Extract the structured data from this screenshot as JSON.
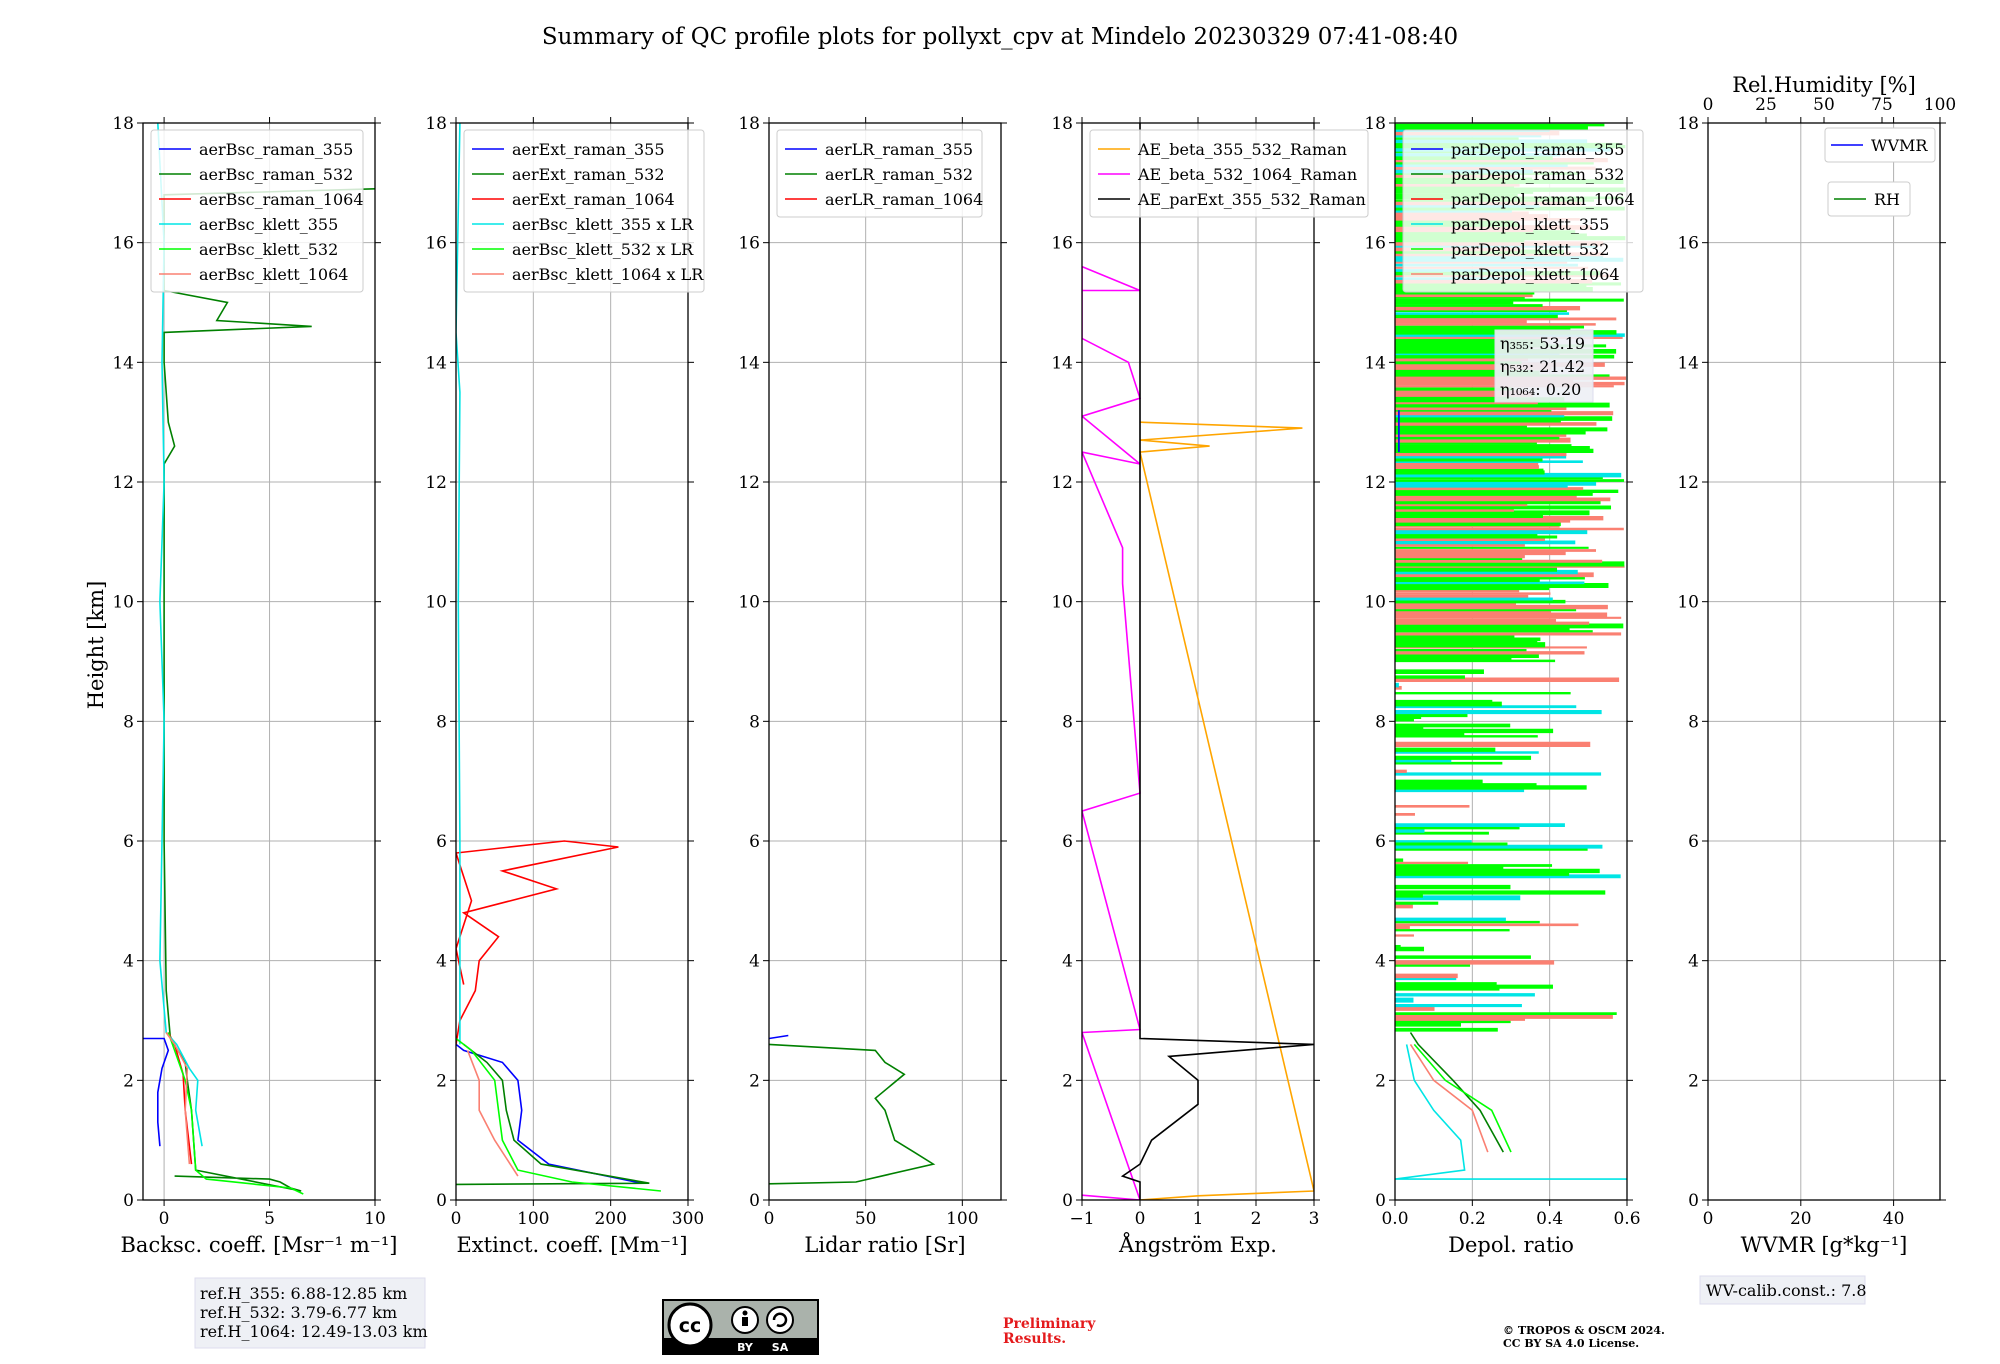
{
  "title": "Summary of QC profile plots for pollyxt_cpv at Mindelo 20230329 07:41-08:40",
  "y_axis": {
    "label": "Height [km]",
    "ticks": [
      0,
      2,
      4,
      6,
      8,
      10,
      12,
      14,
      16,
      18
    ],
    "ylim": [
      0,
      18
    ]
  },
  "colors": {
    "blue": "#0000ff",
    "green": "#008000",
    "red": "#ff0000",
    "cyan": "#00e5e5",
    "lime": "#00ff00",
    "salmon": "#fa8072",
    "orange": "#ffa500",
    "magenta": "#ff00ff",
    "black": "#000000"
  },
  "chart_data": [
    {
      "type": "line",
      "id": "backscatter",
      "xlabel": "Backsc. coeff. [Msr⁻¹ m⁻¹]",
      "xlim": [
        -1,
        10
      ],
      "xticks": [
        0,
        5,
        10
      ],
      "legend": [
        "aerBsc_raman_355",
        "aerBsc_raman_532",
        "aerBsc_raman_1064",
        "aerBsc_klett_355",
        "aerBsc_klett_532",
        "aerBsc_klett_1064"
      ],
      "series": [
        {
          "name": "aerBsc_raman_355",
          "color": "blue",
          "points": [
            [
              -0.2,
              0.9
            ],
            [
              -0.3,
              1.3
            ],
            [
              -0.3,
              1.8
            ],
            [
              -0.1,
              2.2
            ],
            [
              0.2,
              2.5
            ],
            [
              0,
              2.7
            ],
            [
              -1,
              2.7
            ]
          ]
        },
        {
          "name": "aerBsc_raman_532",
          "color": "green",
          "points": [
            [
              0.5,
              0.4
            ],
            [
              5,
              0.35
            ],
            [
              5.5,
              0.3
            ],
            [
              6,
              0.2
            ],
            [
              6.5,
              0.15
            ],
            [
              1.5,
              0.5
            ],
            [
              1.3,
              1.5
            ],
            [
              1.1,
              2.0
            ],
            [
              1.0,
              2.3
            ],
            [
              0.3,
              2.7
            ],
            [
              0.1,
              3.5
            ],
            [
              0,
              6
            ],
            [
              0,
              12.3
            ],
            [
              0.5,
              12.6
            ],
            [
              0.2,
              13.0
            ],
            [
              0,
              14
            ],
            [
              0,
              14.5
            ],
            [
              7,
              14.6
            ],
            [
              2.5,
              14.7
            ],
            [
              3,
              15.0
            ],
            [
              0,
              15.2
            ],
            [
              0,
              16.8
            ],
            [
              10,
              16.9
            ]
          ]
        },
        {
          "name": "aerBsc_raman_1064",
          "color": "red",
          "points": [
            [
              1.3,
              0.6
            ],
            [
              1.0,
              1.5
            ],
            [
              0.9,
              2.1
            ],
            [
              0.5,
              2.6
            ],
            [
              0.2,
              2.8
            ]
          ]
        },
        {
          "name": "aerBsc_klett_355",
          "color": "cyan",
          "points": [
            [
              1.8,
              0.9
            ],
            [
              1.5,
              1.5
            ],
            [
              1.6,
              2.0
            ],
            [
              1.2,
              2.2
            ],
            [
              0.6,
              2.6
            ],
            [
              0.1,
              2.8
            ],
            [
              -0.2,
              4
            ],
            [
              0,
              8
            ],
            [
              -0.2,
              10
            ],
            [
              0,
              12
            ],
            [
              -0.1,
              14
            ],
            [
              0,
              16
            ],
            [
              -0.3,
              18
            ]
          ]
        },
        {
          "name": "aerBsc_klett_532",
          "color": "lime",
          "points": [
            [
              6.6,
              0.1
            ],
            [
              6,
              0.2
            ],
            [
              2,
              0.35
            ],
            [
              1.5,
              0.5
            ],
            [
              1.3,
              1.5
            ],
            [
              1.0,
              2.0
            ],
            [
              0.5,
              2.5
            ],
            [
              0.2,
              2.8
            ]
          ]
        },
        {
          "name": "aerBsc_klett_1064",
          "color": "salmon",
          "points": [
            [
              1.2,
              0.6
            ],
            [
              1.0,
              1.5
            ],
            [
              1.1,
              2.2
            ],
            [
              0.5,
              2.6
            ],
            [
              0.1,
              2.8
            ]
          ]
        }
      ]
    },
    {
      "type": "line",
      "id": "extinction",
      "xlabel": "Extinct. coeff. [Mm⁻¹]",
      "xlim": [
        0,
        300
      ],
      "xticks": [
        0,
        100,
        200,
        300
      ],
      "legend": [
        "aerExt_raman_355",
        "aerExt_raman_532",
        "aerExt_raman_1064",
        "aerBsc_klett_355 x LR",
        "aerBsc_klett_532 x LR",
        "aerBsc_klett_1064 x LR"
      ],
      "series": [
        {
          "name": "aerExt_raman_355",
          "color": "blue",
          "points": [
            [
              240,
              0.28
            ],
            [
              120,
              0.6
            ],
            [
              80,
              1.0
            ],
            [
              85,
              1.5
            ],
            [
              80,
              2.0
            ],
            [
              60,
              2.3
            ],
            [
              10,
              2.5
            ],
            [
              0,
              2.6
            ]
          ]
        },
        {
          "name": "aerExt_raman_532",
          "color": "green",
          "points": [
            [
              0,
              0.26
            ],
            [
              250,
              0.28
            ],
            [
              110,
              0.6
            ],
            [
              75,
              1.0
            ],
            [
              65,
              1.5
            ],
            [
              60,
              2.0
            ],
            [
              40,
              2.3
            ],
            [
              10,
              2.6
            ]
          ]
        },
        {
          "name": "aerExt_raman_1064",
          "color": "red",
          "points": [
            [
              0,
              2.6
            ],
            [
              5,
              3.0
            ],
            [
              25,
              3.5
            ],
            [
              30,
              4.0
            ],
            [
              55,
              4.4
            ],
            [
              10,
              4.8
            ],
            [
              130,
              5.2
            ],
            [
              60,
              5.5
            ],
            [
              210,
              5.9
            ],
            [
              140,
              6.0
            ],
            [
              0,
              5.8
            ],
            [
              20,
              5.0
            ],
            [
              0,
              4.2
            ],
            [
              10,
              3.6
            ]
          ]
        },
        {
          "name": "aerBsc_klett_355 x LR",
          "color": "cyan",
          "points": [
            [
              5,
              2.6
            ],
            [
              5,
              6
            ],
            [
              3,
              10
            ],
            [
              5,
              13.5
            ],
            [
              0,
              14.5
            ],
            [
              5,
              18
            ]
          ]
        },
        {
          "name": "aerBsc_klett_532 x LR",
          "color": "lime",
          "points": [
            [
              265,
              0.15
            ],
            [
              150,
              0.3
            ],
            [
              80,
              0.5
            ],
            [
              60,
              1.0
            ],
            [
              55,
              1.5
            ],
            [
              50,
              2.0
            ],
            [
              20,
              2.5
            ],
            [
              0,
              2.7
            ]
          ]
        },
        {
          "name": "aerBsc_klett_1064 x LR",
          "color": "salmon",
          "points": [
            [
              80,
              0.4
            ],
            [
              50,
              1.0
            ],
            [
              30,
              1.5
            ],
            [
              30,
              2.0
            ],
            [
              15,
              2.5
            ]
          ]
        }
      ]
    },
    {
      "type": "line",
      "id": "lidar_ratio",
      "xlabel": "Lidar ratio [Sr]",
      "xlim": [
        0,
        120
      ],
      "xticks": [
        0,
        50,
        100
      ],
      "legend": [
        "aerLR_raman_355",
        "aerLR_raman_532",
        "aerLR_raman_1064"
      ],
      "series": [
        {
          "name": "aerLR_raman_355",
          "color": "blue",
          "points": [
            [
              0,
              2.7
            ],
            [
              10,
              2.75
            ]
          ]
        },
        {
          "name": "aerLR_raman_532",
          "color": "green",
          "points": [
            [
              0,
              0.27
            ],
            [
              45,
              0.3
            ],
            [
              85,
              0.6
            ],
            [
              75,
              0.8
            ],
            [
              65,
              1.0
            ],
            [
              60,
              1.5
            ],
            [
              55,
              1.7
            ],
            [
              70,
              2.1
            ],
            [
              60,
              2.3
            ],
            [
              55,
              2.5
            ],
            [
              0,
              2.6
            ]
          ]
        },
        {
          "name": "aerLR_raman_1064",
          "color": "red",
          "points": []
        }
      ]
    },
    {
      "type": "line",
      "id": "angstrom",
      "xlabel": "Ångström Exp.",
      "xlim": [
        -1,
        3
      ],
      "xticks": [
        -1,
        0,
        1,
        2,
        3
      ],
      "legend": [
        "AE_beta_355_532_Raman",
        "AE_beta_532_1064_Raman",
        "AE_parExt_355_532_Raman"
      ],
      "series": [
        {
          "name": "AE_beta_355_532_Raman",
          "color": "orange",
          "points": [
            [
              0,
              0
            ],
            [
              1,
              0.07
            ],
            [
              3,
              0.15
            ],
            [
              0,
              12.5
            ],
            [
              1.2,
              12.6
            ],
            [
              0,
              12.7
            ],
            [
              2.8,
              12.9
            ],
            [
              0,
              13.0
            ]
          ]
        },
        {
          "name": "AE_beta_532_1064_Raman",
          "color": "magenta",
          "points": [
            [
              -1,
              0.08
            ],
            [
              0,
              0
            ],
            [
              -1,
              2.8
            ],
            [
              0,
              2.85
            ],
            [
              -1,
              6.5
            ],
            [
              0,
              6.8
            ],
            [
              -0.3,
              10.3
            ],
            [
              -0.3,
              10.9
            ],
            [
              -1,
              12.5
            ],
            [
              0,
              12.3
            ],
            [
              -1,
              13.1
            ],
            [
              0,
              13.4
            ],
            [
              -0.2,
              14.0
            ],
            [
              -1,
              14.4
            ],
            [
              -1,
              15.6
            ],
            [
              0,
              15.2
            ],
            [
              -1,
              15.2
            ]
          ]
        },
        {
          "name": "AE_parExt_355_532_Raman",
          "color": "black",
          "points": [
            [
              0,
              0
            ],
            [
              0,
              0.3
            ],
            [
              -0.3,
              0.4
            ],
            [
              0,
              0.6
            ],
            [
              0.2,
              1.0
            ],
            [
              1.0,
              1.6
            ],
            [
              1.0,
              2.0
            ],
            [
              0.5,
              2.4
            ],
            [
              3,
              2.6
            ],
            [
              0,
              2.7
            ],
            [
              0,
              18
            ]
          ]
        }
      ]
    },
    {
      "type": "line",
      "id": "depol",
      "xlabel": "Depol. ratio",
      "xlim": [
        0,
        0.6
      ],
      "xticks": [
        0.0,
        0.2,
        0.4,
        0.6
      ],
      "legend": [
        "parDepol_raman_355",
        "parDepol_raman_532",
        "parDepol_raman_1064",
        "parDepol_klett_355",
        "parDepol_klett_532",
        "parDepol_klett_1064"
      ],
      "annotations": [
        "η₃₅₅: 53.19",
        "η₅₃₂: 21.42",
        "η₁₀₆₄: 0.20"
      ],
      "series": [
        {
          "name": "parDepol_raman_355",
          "color": "blue",
          "points": [
            [
              0.01,
              12.5
            ],
            [
              0.01,
              13.2
            ]
          ]
        },
        {
          "name": "parDepol_raman_532",
          "color": "green",
          "points": [
            [
              0.28,
              0.8
            ],
            [
              0.22,
              1.5
            ],
            [
              0.15,
              2.0
            ],
            [
              0.06,
              2.6
            ],
            [
              0.04,
              2.8
            ]
          ]
        },
        {
          "name": "parDepol_raman_1064",
          "color": "red",
          "points": []
        },
        {
          "name": "parDepol_klett_355",
          "color": "cyan",
          "points": [
            [
              0.6,
              0.35
            ],
            [
              0.0,
              0.35
            ],
            [
              0.18,
              0.5
            ],
            [
              0.17,
              1.0
            ],
            [
              0.1,
              1.5
            ],
            [
              0.05,
              2.0
            ],
            [
              0.03,
              2.6
            ]
          ]
        },
        {
          "name": "parDepol_klett_532",
          "color": "lime",
          "points": [
            [
              0.3,
              0.8
            ],
            [
              0.25,
              1.5
            ],
            [
              0.13,
              2.0
            ],
            [
              0.05,
              2.6
            ]
          ]
        },
        {
          "name": "parDepol_klett_1064",
          "color": "salmon",
          "points": [
            [
              0.24,
              0.8
            ],
            [
              0.2,
              1.5
            ],
            [
              0.1,
              2.0
            ],
            [
              0.04,
              2.6
            ]
          ]
        }
      ]
    },
    {
      "type": "line",
      "id": "wvmr",
      "xlabel": "WVMR [g*kg⁻¹]",
      "xlim": [
        0,
        50
      ],
      "xticks": [
        0,
        20,
        40
      ],
      "top_axis": {
        "label": "Rel.Humidity [%]",
        "ticks": [
          0,
          25,
          50,
          75,
          100
        ]
      },
      "legend": [
        "WVMR",
        "RH"
      ],
      "series": [
        {
          "name": "WVMR",
          "color": "blue",
          "points": []
        },
        {
          "name": "RH",
          "color": "green",
          "points": []
        }
      ]
    }
  ],
  "ref_heights": [
    "ref.H_355: 6.88-12.85 km",
    "ref.H_532: 3.79-6.77 km",
    "ref.H_1064: 12.49-13.03 km"
  ],
  "wv_calib": "WV-calib.const.: 7.8",
  "prelim": [
    "Preliminary",
    "Results."
  ],
  "copyright": [
    "© TROPOS & OSCM 2024.",
    "CC BY SA 4.0 License."
  ],
  "cc_badge": {
    "mark": "cc",
    "by": "BY",
    "sa": "SA"
  }
}
